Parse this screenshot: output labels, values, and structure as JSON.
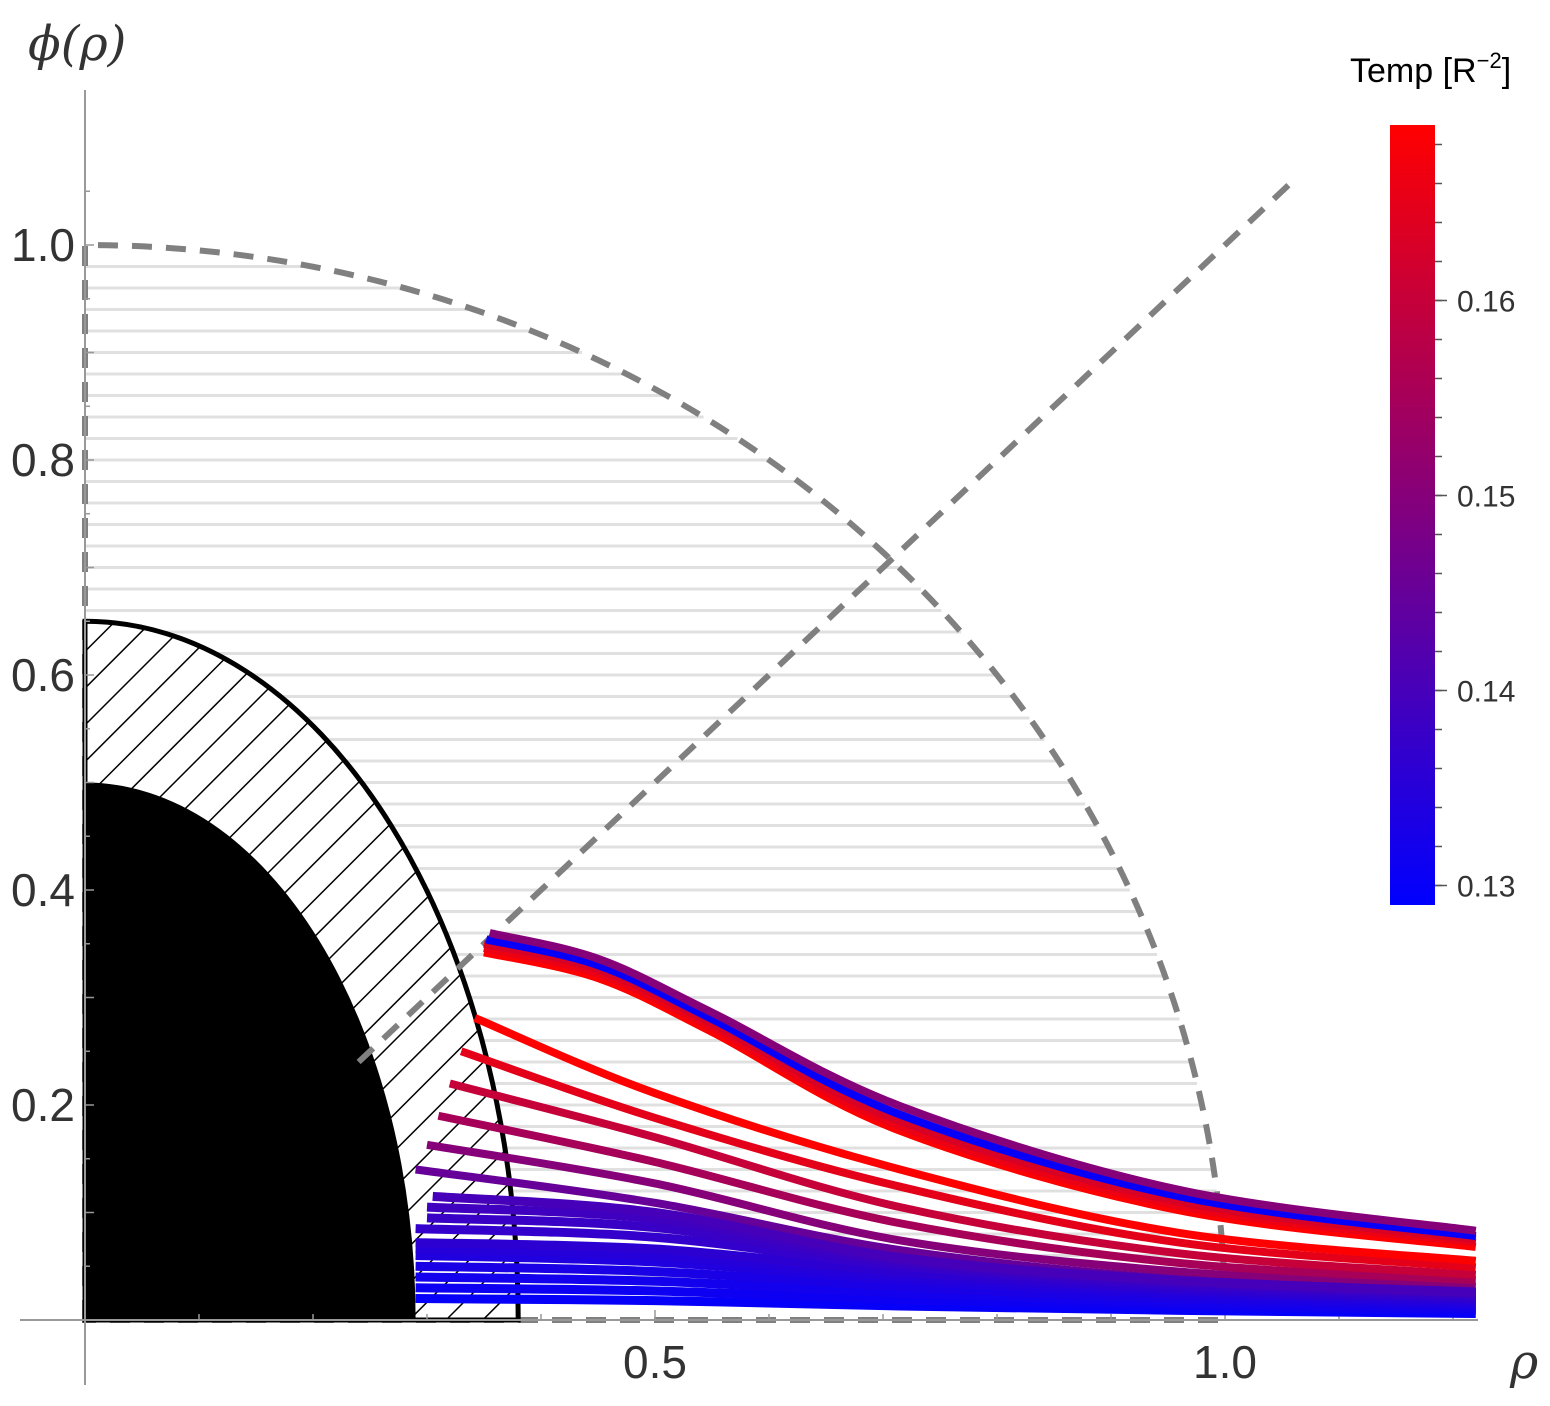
{
  "chart_data": {
    "type": "line",
    "xlabel": "ρ",
    "ylabel": "ϕ(ρ)",
    "xlim": [
      0,
      1.22
    ],
    "ylim": [
      0,
      1.1
    ],
    "x_ticks": [
      {
        "value": 0.5,
        "label": "0.5"
      },
      {
        "value": 1.0,
        "label": "1.0"
      }
    ],
    "y_ticks": [
      {
        "value": 0.2,
        "label": "0.2"
      },
      {
        "value": 0.4,
        "label": "0.4"
      },
      {
        "value": 0.6,
        "label": "0.6"
      },
      {
        "value": 0.8,
        "label": "0.8"
      },
      {
        "value": 1.0,
        "label": "1.0"
      }
    ],
    "grid": false,
    "colorbar": {
      "title": "Temp [R",
      "title_sup": "−2",
      "title_end": "]",
      "range": [
        0.129,
        0.169
      ],
      "low_color": "#0000ff",
      "high_color": "#ff0000",
      "ticks": [
        {
          "value": 0.13,
          "label": "0.13"
        },
        {
          "value": 0.14,
          "label": "0.14"
        },
        {
          "value": 0.15,
          "label": "0.15"
        },
        {
          "value": 0.16,
          "label": "0.16"
        }
      ],
      "placement": "right"
    },
    "regions": {
      "excluded_core": {
        "rho_radius": 0.29,
        "phi_radius": 0.5,
        "color": "#000000"
      },
      "hatched_shell": {
        "rho_radius": 0.38,
        "phi_radius": 0.65
      },
      "shaded_disk": {
        "radius": 1.0,
        "line_color": "#e0e0e0"
      },
      "dashed_circle_radius": 1.0,
      "dashed_diagonal": {
        "from": 0.24,
        "to": 1.06
      }
    },
    "series": [
      {
        "temp": 0.145,
        "points": [
          [
            0.29,
            0.14
          ],
          [
            0.5,
            0.109
          ],
          [
            0.715,
            0.065
          ],
          [
            0.96,
            0.038
          ],
          [
            1.22,
            0.026
          ]
        ]
      },
      {
        "temp": 0.15,
        "points": [
          [
            0.3,
            0.163
          ],
          [
            0.5,
            0.127
          ],
          [
            0.715,
            0.074
          ],
          [
            0.96,
            0.045
          ],
          [
            1.22,
            0.031
          ]
        ]
      },
      {
        "temp": 0.155,
        "points": [
          [
            0.31,
            0.19
          ],
          [
            0.5,
            0.147
          ],
          [
            0.715,
            0.09
          ],
          [
            0.96,
            0.053
          ],
          [
            1.22,
            0.037
          ]
        ]
      },
      {
        "temp": 0.16,
        "points": [
          [
            0.32,
            0.22
          ],
          [
            0.5,
            0.17
          ],
          [
            0.715,
            0.105
          ],
          [
            0.96,
            0.062
          ],
          [
            1.22,
            0.042
          ]
        ]
      },
      {
        "temp": 0.165,
        "points": [
          [
            0.33,
            0.25
          ],
          [
            0.5,
            0.188
          ],
          [
            0.715,
            0.124
          ],
          [
            0.96,
            0.072
          ],
          [
            1.22,
            0.049
          ]
        ]
      },
      {
        "temp": 0.169,
        "points": [
          [
            0.342,
            0.281
          ],
          [
            0.5,
            0.211
          ],
          [
            0.715,
            0.14
          ],
          [
            0.96,
            0.081
          ],
          [
            1.22,
            0.055
          ]
        ]
      },
      {
        "temp": 0.13,
        "points": [
          [
            0.29,
            0.02
          ],
          [
            0.5,
            0.018
          ],
          [
            0.715,
            0.013
          ],
          [
            0.96,
            0.009
          ],
          [
            1.22,
            0.006
          ]
        ]
      },
      {
        "temp": 0.131,
        "points": [
          [
            0.29,
            0.03
          ],
          [
            0.5,
            0.027
          ],
          [
            0.715,
            0.019
          ],
          [
            0.96,
            0.013
          ],
          [
            1.22,
            0.009
          ]
        ]
      },
      {
        "temp": 0.132,
        "points": [
          [
            0.29,
            0.04
          ],
          [
            0.5,
            0.036
          ],
          [
            0.715,
            0.025
          ],
          [
            0.96,
            0.016
          ],
          [
            1.22,
            0.011
          ]
        ]
      },
      {
        "temp": 0.133,
        "points": [
          [
            0.29,
            0.05
          ],
          [
            0.5,
            0.045
          ],
          [
            0.715,
            0.031
          ],
          [
            0.96,
            0.02
          ],
          [
            1.22,
            0.014
          ]
        ]
      },
      {
        "temp": 0.134,
        "points": [
          [
            0.29,
            0.06
          ],
          [
            0.5,
            0.054
          ],
          [
            0.715,
            0.037
          ],
          [
            0.96,
            0.024
          ],
          [
            1.22,
            0.016
          ]
        ]
      },
      {
        "temp": 0.135,
        "points": [
          [
            0.29,
            0.066
          ],
          [
            0.5,
            0.06
          ],
          [
            0.715,
            0.041
          ],
          [
            0.96,
            0.027
          ],
          [
            1.22,
            0.018
          ]
        ]
      },
      {
        "temp": 0.136,
        "points": [
          [
            0.29,
            0.072
          ],
          [
            0.5,
            0.066
          ],
          [
            0.715,
            0.045
          ],
          [
            0.96,
            0.029
          ],
          [
            1.22,
            0.02
          ]
        ]
      },
      {
        "temp": 0.137,
        "points": [
          [
            0.29,
            0.085
          ],
          [
            0.5,
            0.077
          ],
          [
            0.715,
            0.05
          ],
          [
            0.96,
            0.032
          ],
          [
            1.22,
            0.022
          ]
        ]
      },
      {
        "temp": 0.138,
        "points": [
          [
            0.3,
            0.095
          ],
          [
            0.5,
            0.086
          ],
          [
            0.715,
            0.053
          ],
          [
            0.96,
            0.034
          ],
          [
            1.22,
            0.024
          ]
        ]
      },
      {
        "temp": 0.139,
        "points": [
          [
            0.3,
            0.105
          ],
          [
            0.5,
            0.094
          ],
          [
            0.715,
            0.056
          ],
          [
            0.96,
            0.036
          ],
          [
            1.22,
            0.025
          ]
        ]
      },
      {
        "temp": 0.14,
        "points": [
          [
            0.305,
            0.115
          ],
          [
            0.5,
            0.1
          ],
          [
            0.715,
            0.058
          ],
          [
            0.96,
            0.037
          ],
          [
            1.22,
            0.026
          ]
        ]
      },
      {
        "temp": 0.169,
        "points": [
          [
            0.35,
            0.342
          ],
          [
            0.45,
            0.318
          ],
          [
            0.55,
            0.268
          ],
          [
            0.715,
            0.176
          ],
          [
            0.96,
            0.102
          ],
          [
            1.22,
            0.068
          ]
        ]
      },
      {
        "temp": 0.166,
        "points": [
          [
            0.35,
            0.346
          ],
          [
            0.45,
            0.322
          ],
          [
            0.55,
            0.272
          ],
          [
            0.715,
            0.18
          ],
          [
            0.96,
            0.106
          ],
          [
            1.22,
            0.072
          ]
        ]
      },
      {
        "temp": 0.163,
        "points": [
          [
            0.35,
            0.35
          ],
          [
            0.45,
            0.326
          ],
          [
            0.55,
            0.276
          ],
          [
            0.715,
            0.185
          ],
          [
            0.96,
            0.11
          ],
          [
            1.22,
            0.075
          ]
        ]
      },
      {
        "temp": 0.13,
        "points": [
          [
            0.352,
            0.354
          ],
          [
            0.45,
            0.33
          ],
          [
            0.55,
            0.28
          ],
          [
            0.715,
            0.191
          ],
          [
            0.96,
            0.115
          ],
          [
            1.22,
            0.078
          ]
        ]
      },
      {
        "temp": 0.15,
        "points": [
          [
            0.355,
            0.36
          ],
          [
            0.45,
            0.336
          ],
          [
            0.55,
            0.286
          ],
          [
            0.715,
            0.199
          ],
          [
            0.96,
            0.121
          ],
          [
            1.22,
            0.083
          ]
        ]
      }
    ]
  }
}
